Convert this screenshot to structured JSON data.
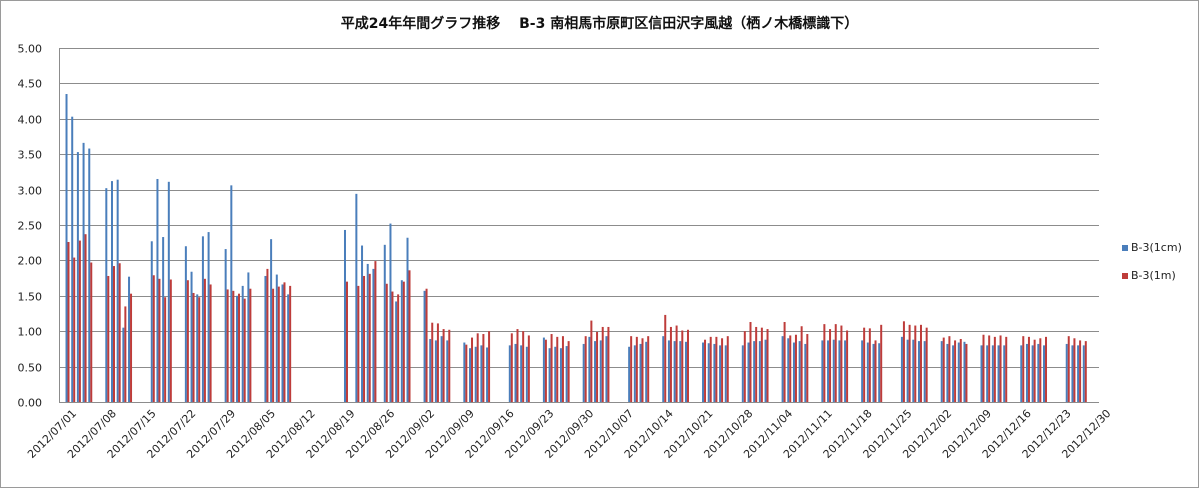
{
  "chart_data": {
    "type": "bar",
    "title": "平成24年年間グラフ推移　 B-3 南相馬市原町区信田沢字風越（栖ノ木橋標識下）",
    "xlabel": "",
    "ylabel": "",
    "ylim": [
      0,
      5
    ],
    "yticks": [
      "0.00",
      "0.50",
      "1.00",
      "1.50",
      "2.00",
      "2.50",
      "3.00",
      "3.50",
      "4.00",
      "4.50",
      "5.00"
    ],
    "xlim": [
      "2012/07/01",
      "2012/12/31"
    ],
    "xticks": [
      "2012/07/01",
      "2012/07/08",
      "2012/07/15",
      "2012/07/22",
      "2012/07/29",
      "2012/08/05",
      "2012/08/12",
      "2012/08/19",
      "2012/08/26",
      "2012/09/02",
      "2012/09/09",
      "2012/09/16",
      "2012/09/23",
      "2012/09/30",
      "2012/10/07",
      "2012/10/14",
      "2012/10/21",
      "2012/10/28",
      "2012/11/04",
      "2012/11/11",
      "2012/11/18",
      "2012/11/25",
      "2012/12/02",
      "2012/12/09",
      "2012/12/16",
      "2012/12/23",
      "2012/12/30"
    ],
    "grid": true,
    "legend_position": "right",
    "series": [
      {
        "name": "B-3(1cm)",
        "color": "#4a7ebb",
        "points": [
          [
            "2012/07/02",
            4.35
          ],
          [
            "2012/07/03",
            4.03
          ],
          [
            "2012/07/04",
            3.53
          ],
          [
            "2012/07/05",
            3.66
          ],
          [
            "2012/07/06",
            3.58
          ],
          [
            "2012/07/09",
            3.02
          ],
          [
            "2012/07/10",
            3.12
          ],
          [
            "2012/07/11",
            3.14
          ],
          [
            "2012/07/12",
            1.05
          ],
          [
            "2012/07/13",
            1.77
          ],
          [
            "2012/07/17",
            2.27
          ],
          [
            "2012/07/18",
            3.15
          ],
          [
            "2012/07/19",
            2.33
          ],
          [
            "2012/07/20",
            3.11
          ],
          [
            "2012/07/23",
            2.2
          ],
          [
            "2012/07/24",
            1.84
          ],
          [
            "2012/07/25",
            1.52
          ],
          [
            "2012/07/26",
            2.34
          ],
          [
            "2012/07/27",
            2.4
          ],
          [
            "2012/07/30",
            2.16
          ],
          [
            "2012/07/31",
            3.06
          ],
          [
            "2012/08/01",
            1.5
          ],
          [
            "2012/08/02",
            1.64
          ],
          [
            "2012/08/03",
            1.83
          ],
          [
            "2012/08/06",
            1.78
          ],
          [
            "2012/08/07",
            2.3
          ],
          [
            "2012/08/08",
            1.8
          ],
          [
            "2012/08/09",
            1.66
          ],
          [
            "2012/08/10",
            1.52
          ],
          [
            "2012/08/20",
            2.43
          ],
          [
            "2012/08/22",
            2.94
          ],
          [
            "2012/08/23",
            2.21
          ],
          [
            "2012/08/24",
            1.95
          ],
          [
            "2012/08/25",
            1.88
          ],
          [
            "2012/08/27",
            2.22
          ],
          [
            "2012/08/28",
            2.52
          ],
          [
            "2012/08/29",
            1.42
          ],
          [
            "2012/08/30",
            1.72
          ],
          [
            "2012/08/31",
            2.32
          ],
          [
            "2012/09/03",
            1.57
          ],
          [
            "2012/09/04",
            0.89
          ],
          [
            "2012/09/05",
            0.87
          ],
          [
            "2012/09/06",
            0.93
          ],
          [
            "2012/09/07",
            0.87
          ],
          [
            "2012/09/10",
            0.84
          ],
          [
            "2012/09/11",
            0.76
          ],
          [
            "2012/09/12",
            0.78
          ],
          [
            "2012/09/13",
            0.8
          ],
          [
            "2012/09/14",
            0.77
          ],
          [
            "2012/09/18",
            0.8
          ],
          [
            "2012/09/19",
            0.82
          ],
          [
            "2012/09/20",
            0.8
          ],
          [
            "2012/09/21",
            0.78
          ],
          [
            "2012/09/24",
            0.91
          ],
          [
            "2012/09/25",
            0.76
          ],
          [
            "2012/09/26",
            0.78
          ],
          [
            "2012/09/27",
            0.76
          ],
          [
            "2012/09/28",
            0.79
          ],
          [
            "2012/10/01",
            0.82
          ],
          [
            "2012/10/02",
            0.92
          ],
          [
            "2012/10/03",
            0.86
          ],
          [
            "2012/10/04",
            0.87
          ],
          [
            "2012/10/05",
            0.93
          ],
          [
            "2012/10/09",
            0.78
          ],
          [
            "2012/10/10",
            0.8
          ],
          [
            "2012/10/11",
            0.82
          ],
          [
            "2012/10/12",
            0.85
          ],
          [
            "2012/10/15",
            0.93
          ],
          [
            "2012/10/16",
            0.87
          ],
          [
            "2012/10/17",
            0.86
          ],
          [
            "2012/10/18",
            0.86
          ],
          [
            "2012/10/19",
            0.85
          ],
          [
            "2012/10/22",
            0.84
          ],
          [
            "2012/10/23",
            0.83
          ],
          [
            "2012/10/24",
            0.82
          ],
          [
            "2012/10/25",
            0.8
          ],
          [
            "2012/10/26",
            0.8
          ],
          [
            "2012/10/29",
            0.8
          ],
          [
            "2012/10/30",
            0.84
          ],
          [
            "2012/10/31",
            0.86
          ],
          [
            "2012/11/01",
            0.86
          ],
          [
            "2012/11/02",
            0.88
          ],
          [
            "2012/11/05",
            0.93
          ],
          [
            "2012/11/06",
            0.9
          ],
          [
            "2012/11/07",
            0.84
          ],
          [
            "2012/11/08",
            0.86
          ],
          [
            "2012/11/09",
            0.82
          ],
          [
            "2012/11/12",
            0.87
          ],
          [
            "2012/11/13",
            0.87
          ],
          [
            "2012/11/14",
            0.88
          ],
          [
            "2012/11/15",
            0.87
          ],
          [
            "2012/11/16",
            0.87
          ],
          [
            "2012/11/19",
            0.87
          ],
          [
            "2012/11/20",
            0.84
          ],
          [
            "2012/11/21",
            0.82
          ],
          [
            "2012/11/22",
            0.83
          ],
          [
            "2012/11/26",
            0.92
          ],
          [
            "2012/11/27",
            0.88
          ],
          [
            "2012/11/28",
            0.88
          ],
          [
            "2012/11/29",
            0.86
          ],
          [
            "2012/11/30",
            0.86
          ],
          [
            "2012/12/03",
            0.86
          ],
          [
            "2012/12/04",
            0.82
          ],
          [
            "2012/12/05",
            0.8
          ],
          [
            "2012/12/06",
            0.84
          ],
          [
            "2012/12/07",
            0.85
          ],
          [
            "2012/12/10",
            0.8
          ],
          [
            "2012/12/11",
            0.8
          ],
          [
            "2012/12/12",
            0.8
          ],
          [
            "2012/12/13",
            0.8
          ],
          [
            "2012/12/14",
            0.8
          ],
          [
            "2012/12/17",
            0.8
          ],
          [
            "2012/12/18",
            0.82
          ],
          [
            "2012/12/19",
            0.8
          ],
          [
            "2012/12/20",
            0.82
          ],
          [
            "2012/12/21",
            0.8
          ],
          [
            "2012/12/25",
            0.82
          ],
          [
            "2012/12/26",
            0.8
          ],
          [
            "2012/12/27",
            0.8
          ],
          [
            "2012/12/28",
            0.8
          ]
        ]
      },
      {
        "name": "B-3(1m)",
        "color": "#be3c3a",
        "points": [
          [
            "2012/07/02",
            2.26
          ],
          [
            "2012/07/03",
            2.04
          ],
          [
            "2012/07/04",
            2.28
          ],
          [
            "2012/07/05",
            2.37
          ],
          [
            "2012/07/06",
            1.97
          ],
          [
            "2012/07/09",
            1.78
          ],
          [
            "2012/07/10",
            1.92
          ],
          [
            "2012/07/11",
            1.96
          ],
          [
            "2012/07/12",
            1.35
          ],
          [
            "2012/07/13",
            1.53
          ],
          [
            "2012/07/17",
            1.79
          ],
          [
            "2012/07/18",
            1.74
          ],
          [
            "2012/07/19",
            1.48
          ],
          [
            "2012/07/20",
            1.73
          ],
          [
            "2012/07/23",
            1.72
          ],
          [
            "2012/07/24",
            1.54
          ],
          [
            "2012/07/25",
            1.48
          ],
          [
            "2012/07/26",
            1.74
          ],
          [
            "2012/07/27",
            1.66
          ],
          [
            "2012/07/30",
            1.59
          ],
          [
            "2012/07/31",
            1.57
          ],
          [
            "2012/08/01",
            1.53
          ],
          [
            "2012/08/02",
            1.46
          ],
          [
            "2012/08/03",
            1.6
          ],
          [
            "2012/08/06",
            1.88
          ],
          [
            "2012/08/07",
            1.6
          ],
          [
            "2012/08/08",
            1.63
          ],
          [
            "2012/08/09",
            1.69
          ],
          [
            "2012/08/10",
            1.64
          ],
          [
            "2012/08/20",
            1.7
          ],
          [
            "2012/08/22",
            1.64
          ],
          [
            "2012/08/23",
            1.78
          ],
          [
            "2012/08/24",
            1.81
          ],
          [
            "2012/08/25",
            1.99
          ],
          [
            "2012/08/27",
            1.67
          ],
          [
            "2012/08/28",
            1.56
          ],
          [
            "2012/08/29",
            1.52
          ],
          [
            "2012/08/30",
            1.7
          ],
          [
            "2012/08/31",
            1.86
          ],
          [
            "2012/09/03",
            1.6
          ],
          [
            "2012/09/04",
            1.12
          ],
          [
            "2012/09/05",
            1.11
          ],
          [
            "2012/09/06",
            1.03
          ],
          [
            "2012/09/07",
            1.02
          ],
          [
            "2012/09/10",
            0.81
          ],
          [
            "2012/09/11",
            0.91
          ],
          [
            "2012/09/12",
            0.97
          ],
          [
            "2012/09/13",
            0.96
          ],
          [
            "2012/09/14",
            1.0
          ],
          [
            "2012/09/18",
            0.97
          ],
          [
            "2012/09/19",
            1.03
          ],
          [
            "2012/09/20",
            1.0
          ],
          [
            "2012/09/21",
            0.94
          ],
          [
            "2012/09/24",
            0.88
          ],
          [
            "2012/09/25",
            0.96
          ],
          [
            "2012/09/26",
            0.92
          ],
          [
            "2012/09/27",
            0.93
          ],
          [
            "2012/09/28",
            0.86
          ],
          [
            "2012/10/01",
            0.93
          ],
          [
            "2012/10/02",
            1.15
          ],
          [
            "2012/10/03",
            0.99
          ],
          [
            "2012/10/04",
            1.06
          ],
          [
            "2012/10/05",
            1.06
          ],
          [
            "2012/10/09",
            0.93
          ],
          [
            "2012/10/10",
            0.92
          ],
          [
            "2012/10/11",
            0.9
          ],
          [
            "2012/10/12",
            0.93
          ],
          [
            "2012/10/15",
            1.23
          ],
          [
            "2012/10/16",
            1.06
          ],
          [
            "2012/10/17",
            1.08
          ],
          [
            "2012/10/18",
            1.01
          ],
          [
            "2012/10/19",
            1.02
          ],
          [
            "2012/10/22",
            0.88
          ],
          [
            "2012/10/23",
            0.92
          ],
          [
            "2012/10/24",
            0.92
          ],
          [
            "2012/10/25",
            0.9
          ],
          [
            "2012/10/26",
            0.93
          ],
          [
            "2012/10/29",
            1.0
          ],
          [
            "2012/10/30",
            1.13
          ],
          [
            "2012/10/31",
            1.06
          ],
          [
            "2012/11/01",
            1.05
          ],
          [
            "2012/11/02",
            1.03
          ],
          [
            "2012/11/05",
            1.13
          ],
          [
            "2012/11/06",
            0.94
          ],
          [
            "2012/11/07",
            0.95
          ],
          [
            "2012/11/08",
            1.07
          ],
          [
            "2012/11/09",
            0.96
          ],
          [
            "2012/11/12",
            1.1
          ],
          [
            "2012/11/13",
            1.03
          ],
          [
            "2012/11/14",
            1.1
          ],
          [
            "2012/11/15",
            1.08
          ],
          [
            "2012/11/16",
            1.01
          ],
          [
            "2012/11/19",
            1.05
          ],
          [
            "2012/11/20",
            1.04
          ],
          [
            "2012/11/21",
            0.87
          ],
          [
            "2012/11/22",
            1.09
          ],
          [
            "2012/11/26",
            1.14
          ],
          [
            "2012/11/27",
            1.09
          ],
          [
            "2012/11/28",
            1.08
          ],
          [
            "2012/11/29",
            1.09
          ],
          [
            "2012/11/30",
            1.05
          ],
          [
            "2012/12/03",
            0.91
          ],
          [
            "2012/12/04",
            0.93
          ],
          [
            "2012/12/05",
            0.87
          ],
          [
            "2012/12/06",
            0.89
          ],
          [
            "2012/12/07",
            0.82
          ],
          [
            "2012/12/10",
            0.95
          ],
          [
            "2012/12/11",
            0.94
          ],
          [
            "2012/12/12",
            0.92
          ],
          [
            "2012/12/13",
            0.94
          ],
          [
            "2012/12/14",
            0.92
          ],
          [
            "2012/12/17",
            0.93
          ],
          [
            "2012/12/18",
            0.92
          ],
          [
            "2012/12/19",
            0.88
          ],
          [
            "2012/12/20",
            0.9
          ],
          [
            "2012/12/21",
            0.92
          ],
          [
            "2012/12/25",
            0.93
          ],
          [
            "2012/12/26",
            0.9
          ],
          [
            "2012/12/27",
            0.87
          ],
          [
            "2012/12/28",
            0.86
          ]
        ]
      }
    ]
  }
}
